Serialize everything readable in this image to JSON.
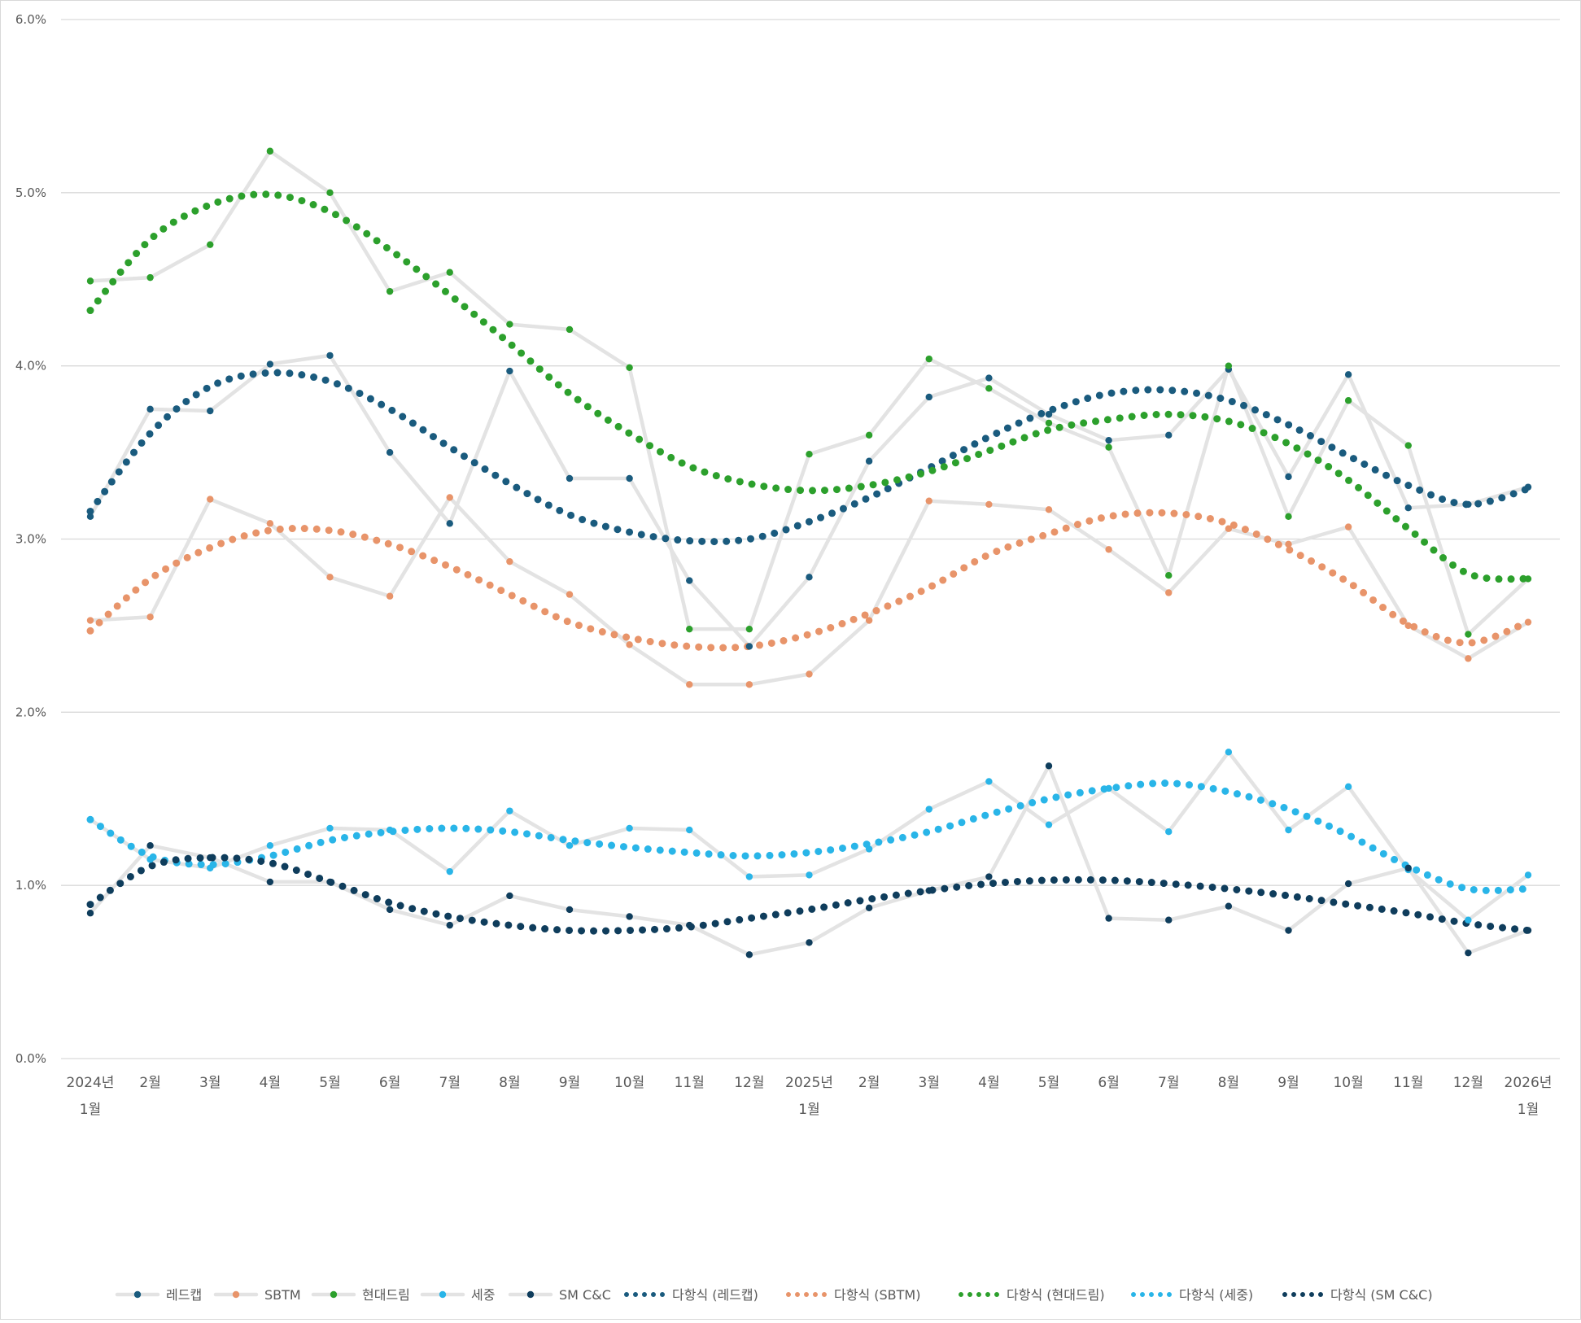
{
  "chart_data": {
    "type": "line",
    "title": "",
    "xlabel": "",
    "ylabel": "",
    "ylim": [
      0,
      0.06
    ],
    "y_ticks": [
      "0.0%",
      "1.0%",
      "2.0%",
      "3.0%",
      "4.0%",
      "5.0%",
      "6.0%"
    ],
    "x_tick_labels": [
      [
        "2024년",
        "1월"
      ],
      [
        "2월"
      ],
      [
        "3월"
      ],
      [
        "4월"
      ],
      [
        "5월"
      ],
      [
        "6월"
      ],
      [
        "7월"
      ],
      [
        "8월"
      ],
      [
        "9월"
      ],
      [
        "10월"
      ],
      [
        "11월"
      ],
      [
        "12월"
      ],
      [
        "2025년",
        "1월"
      ],
      [
        "2월"
      ],
      [
        "3월"
      ],
      [
        "4월"
      ],
      [
        "5월"
      ],
      [
        "6월"
      ],
      [
        "7월"
      ],
      [
        "8월"
      ],
      [
        "9월"
      ],
      [
        "10월"
      ],
      [
        "11월"
      ],
      [
        "12월"
      ],
      [
        "2026년",
        "1월"
      ]
    ],
    "grid": true,
    "legend_position": "bottom",
    "series": [
      {
        "name": "레드캡",
        "color": "#1a5b7e",
        "values": [
          0.0313,
          0.0375,
          0.0374,
          0.0401,
          0.0406,
          0.035,
          0.0309,
          0.0397,
          0.0335,
          0.0335,
          0.0276,
          0.0238,
          0.0278,
          0.0345,
          0.0382,
          0.0393,
          0.0372,
          0.0357,
          0.036,
          0.0398,
          0.0336,
          0.0395,
          0.0318,
          0.032,
          0.033
        ]
      },
      {
        "name": "SBTM",
        "color": "#e8946a",
        "values": [
          0.0253,
          0.0255,
          0.0323,
          0.0309,
          0.0278,
          0.0267,
          0.0324,
          0.0287,
          0.0268,
          0.0239,
          0.0216,
          0.0216,
          0.0222,
          0.0253,
          0.0322,
          0.032,
          0.0317,
          0.0294,
          0.0269,
          0.0306,
          0.0297,
          0.0307,
          0.025,
          0.0231,
          0.0252
        ]
      },
      {
        "name": "현대드림",
        "color": "#2ca02c",
        "values": [
          0.0449,
          0.0451,
          0.047,
          0.0524,
          0.05,
          0.0443,
          0.0454,
          0.0424,
          0.0421,
          0.0399,
          0.0248,
          0.0248,
          0.0349,
          0.036,
          0.0404,
          0.0387,
          0.0367,
          0.0353,
          0.0279,
          0.04,
          0.0313,
          0.038,
          0.0354,
          0.0245,
          0.0277
        ]
      },
      {
        "name": "세중",
        "color": "#29b5e8",
        "values": [
          0.0138,
          0.0115,
          0.011,
          0.0123,
          0.0133,
          0.0132,
          0.0108,
          0.0143,
          0.0123,
          0.0133,
          0.0132,
          0.0105,
          0.0106,
          0.0121,
          0.0144,
          0.016,
          0.0135,
          0.0156,
          0.0131,
          0.0177,
          0.0132,
          0.0157,
          0.0109,
          0.008,
          0.0106
        ]
      },
      {
        "name": "SM C&C",
        "color": "#0f3d5c",
        "values": [
          0.0084,
          0.0123,
          0.0116,
          0.0102,
          0.0102,
          0.0086,
          0.0077,
          0.0094,
          0.0086,
          0.0082,
          0.0077,
          0.006,
          0.0067,
          0.0087,
          0.0097,
          0.0105,
          0.0169,
          0.0081,
          0.008,
          0.0088,
          0.0074,
          0.0101,
          0.011,
          0.0061,
          0.0074
        ]
      }
    ],
    "trendlines": [
      {
        "name": "다항식 (레드캡)",
        "color": "#1a5b7e",
        "start": 0.0316,
        "values": [
          0.0316,
          0.0361,
          0.0388,
          0.0396,
          0.0391,
          0.0375,
          0.0353,
          0.0332,
          0.0314,
          0.0304,
          0.0299,
          0.03,
          0.031,
          0.0324,
          0.0341,
          0.0359,
          0.0374,
          0.0384,
          0.0386,
          0.038,
          0.0366,
          0.0348,
          0.0331,
          0.032,
          0.0329
        ]
      },
      {
        "name": "다항식 (SBTM)",
        "color": "#e8946a",
        "start": 0.0247,
        "values": [
          0.0247,
          0.0277,
          0.0295,
          0.0305,
          0.0305,
          0.0297,
          0.0284,
          0.0268,
          0.0252,
          0.0243,
          0.0238,
          0.0238,
          0.0245,
          0.0257,
          0.0272,
          0.0291,
          0.0303,
          0.0313,
          0.0315,
          0.0309,
          0.0294,
          0.0275,
          0.0251,
          0.024,
          0.0252
        ]
      },
      {
        "name": "다항식 (현대드림)",
        "color": "#2ca02c",
        "start": 0.0432,
        "values": [
          0.0432,
          0.0473,
          0.0493,
          0.0499,
          0.0489,
          0.0467,
          0.0441,
          0.0413,
          0.0384,
          0.0361,
          0.0342,
          0.0332,
          0.0328,
          0.0331,
          0.0339,
          0.0351,
          0.0363,
          0.0369,
          0.0372,
          0.0368,
          0.0355,
          0.0334,
          0.0306,
          0.028,
          0.0277
        ]
      },
      {
        "name": "다항식 (세중)",
        "color": "#29b5e8",
        "start": 0.0138,
        "values": [
          0.0138,
          0.0117,
          0.0112,
          0.0117,
          0.0126,
          0.0131,
          0.0133,
          0.0131,
          0.0126,
          0.0122,
          0.0119,
          0.0117,
          0.0119,
          0.0124,
          0.0131,
          0.0141,
          0.015,
          0.0156,
          0.0159,
          0.0154,
          0.0144,
          0.0129,
          0.0111,
          0.0098,
          0.0098
        ]
      },
      {
        "name": "다항식 (SM C&C)",
        "color": "#0f3d5c",
        "start": 0.0089,
        "values": [
          0.0089,
          0.0111,
          0.0116,
          0.0113,
          0.0102,
          0.009,
          0.0082,
          0.0077,
          0.0074,
          0.0074,
          0.0076,
          0.0081,
          0.0086,
          0.0092,
          0.0097,
          0.0101,
          0.0103,
          0.0103,
          0.0101,
          0.0098,
          0.0094,
          0.0089,
          0.0084,
          0.0078,
          0.0074
        ]
      }
    ]
  }
}
